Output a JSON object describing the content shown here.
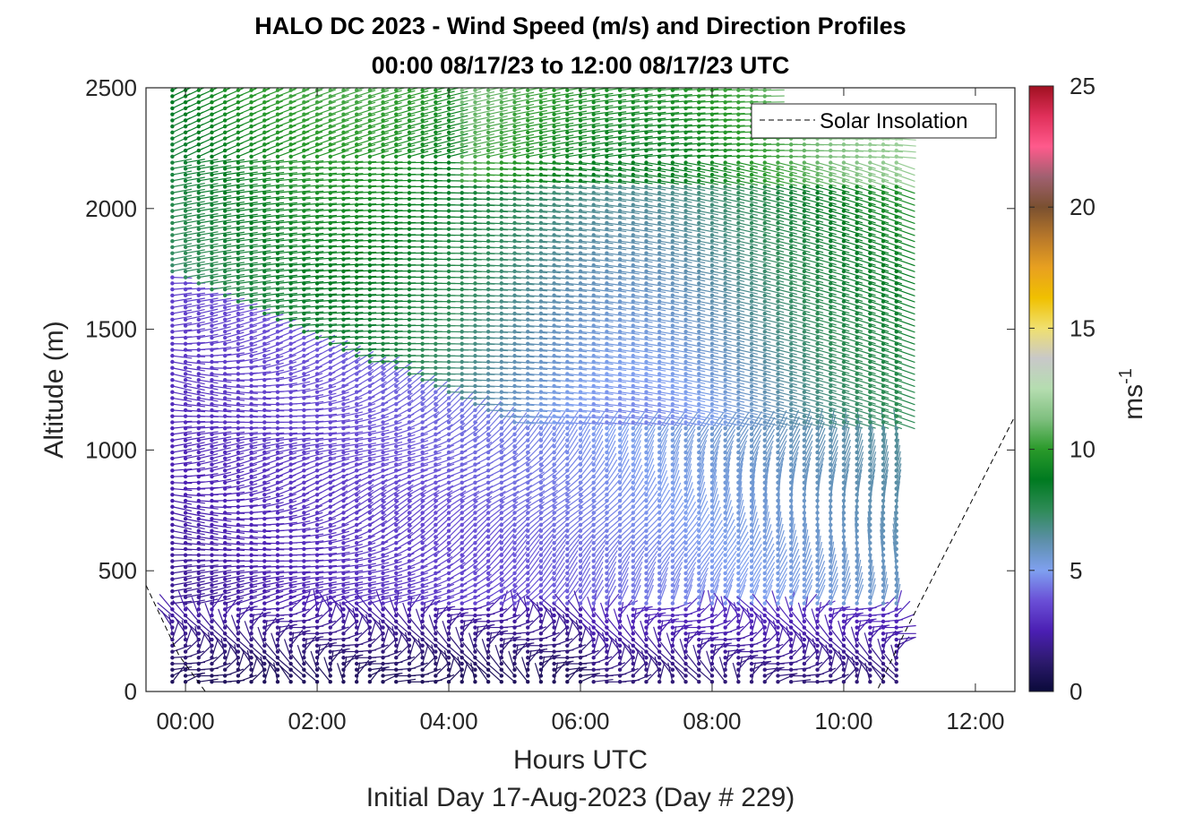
{
  "chart_data": {
    "type": "wind-barb-profile",
    "title_line1": "HALO DC 2023 - Wind Speed (m/s) and Direction Profiles",
    "title_line2": "00:00 08/17/23 to 12:00 08/17/23  UTC",
    "xlabel": "Hours UTC",
    "xlabel2": "Initial Day 17-Aug-2023 (Day # 229)",
    "ylabel": "Altitude (m)",
    "xlim": [
      -0.6,
      12.6
    ],
    "ylim": [
      0,
      2500
    ],
    "xticks": [
      0,
      2,
      4,
      6,
      8,
      10,
      12
    ],
    "xtick_labels": [
      "00:00",
      "02:00",
      "04:00",
      "06:00",
      "08:00",
      "10:00",
      "12:00"
    ],
    "yticks": [
      0,
      500,
      1000,
      1500,
      2000,
      2500
    ],
    "ytick_labels": [
      "0",
      "500",
      "1000",
      "1500",
      "2000",
      "2500"
    ],
    "colorbar": {
      "label": "ms",
      "label_exp": "-1",
      "lim": [
        0,
        25
      ],
      "ticks": [
        0,
        5,
        10,
        15,
        20,
        25
      ],
      "tick_labels": [
        "0",
        "5",
        "10",
        "15",
        "20",
        "25"
      ],
      "colors": [
        "#0a0a3a",
        "#2d1a6e",
        "#4b1fb3",
        "#6a4fd6",
        "#7fa0f0",
        "#5c8fa8",
        "#2e8b57",
        "#007a20",
        "#2a9a2a",
        "#7fbf7f",
        "#b5ddb0",
        "#c8c8c8",
        "#f0e070",
        "#f0c000",
        "#e8a020",
        "#b8782a",
        "#7a5030",
        "#a06070",
        "#ff5a8c",
        "#e0305a",
        "#a01020"
      ]
    },
    "legend": {
      "label": "Solar Insolation",
      "position": "top-right"
    },
    "solar_insolation": {
      "x": [
        -0.6,
        -0.1,
        0.3,
        10.5,
        10.9,
        12.6
      ],
      "y": [
        440,
        150,
        0,
        0,
        230,
        1140
      ]
    },
    "profile_times": [
      -0.2,
      0.0,
      0.2,
      0.4,
      0.6,
      0.8,
      1.0,
      1.2,
      1.4,
      1.6,
      1.8,
      2.0,
      2.2,
      2.4,
      2.6,
      2.8,
      3.0,
      3.2,
      3.4,
      3.6,
      3.8,
      4.0,
      4.2,
      4.4,
      4.6,
      4.8,
      5.0,
      5.2,
      5.4,
      5.6,
      5.8,
      6.0,
      6.2,
      6.4,
      6.6,
      6.8,
      7.0,
      7.2,
      7.4,
      7.6,
      7.8,
      8.0,
      8.2,
      8.4,
      8.6,
      8.8,
      9.0,
      9.2,
      9.4,
      9.6,
      9.8,
      10.0,
      10.2,
      10.4,
      10.6,
      10.8
    ],
    "altitude_levels": [
      40,
      65,
      90,
      115,
      140,
      165,
      190,
      215,
      240,
      265,
      290,
      315,
      340,
      365,
      390,
      415,
      440,
      465,
      490,
      515,
      540,
      565,
      590,
      615,
      640,
      665,
      690,
      715,
      740,
      765,
      790,
      815,
      840,
      865,
      890,
      915,
      940,
      965,
      990,
      1015,
      1040,
      1065,
      1090,
      1115,
      1140,
      1165,
      1190,
      1215,
      1240,
      1265,
      1290,
      1315,
      1340,
      1365,
      1390,
      1415,
      1440,
      1465,
      1490,
      1515,
      1540,
      1565,
      1590,
      1615,
      1640,
      1665,
      1690,
      1715,
      1740,
      1765,
      1790,
      1815,
      1840,
      1865,
      1890,
      1915,
      1940,
      1965,
      1990,
      2015,
      2040,
      2065,
      2090,
      2115,
      2140,
      2165,
      2190,
      2215,
      2240,
      2265,
      2290,
      2315,
      2340,
      2365,
      2390,
      2415,
      2440,
      2465,
      2490
    ]
  }
}
